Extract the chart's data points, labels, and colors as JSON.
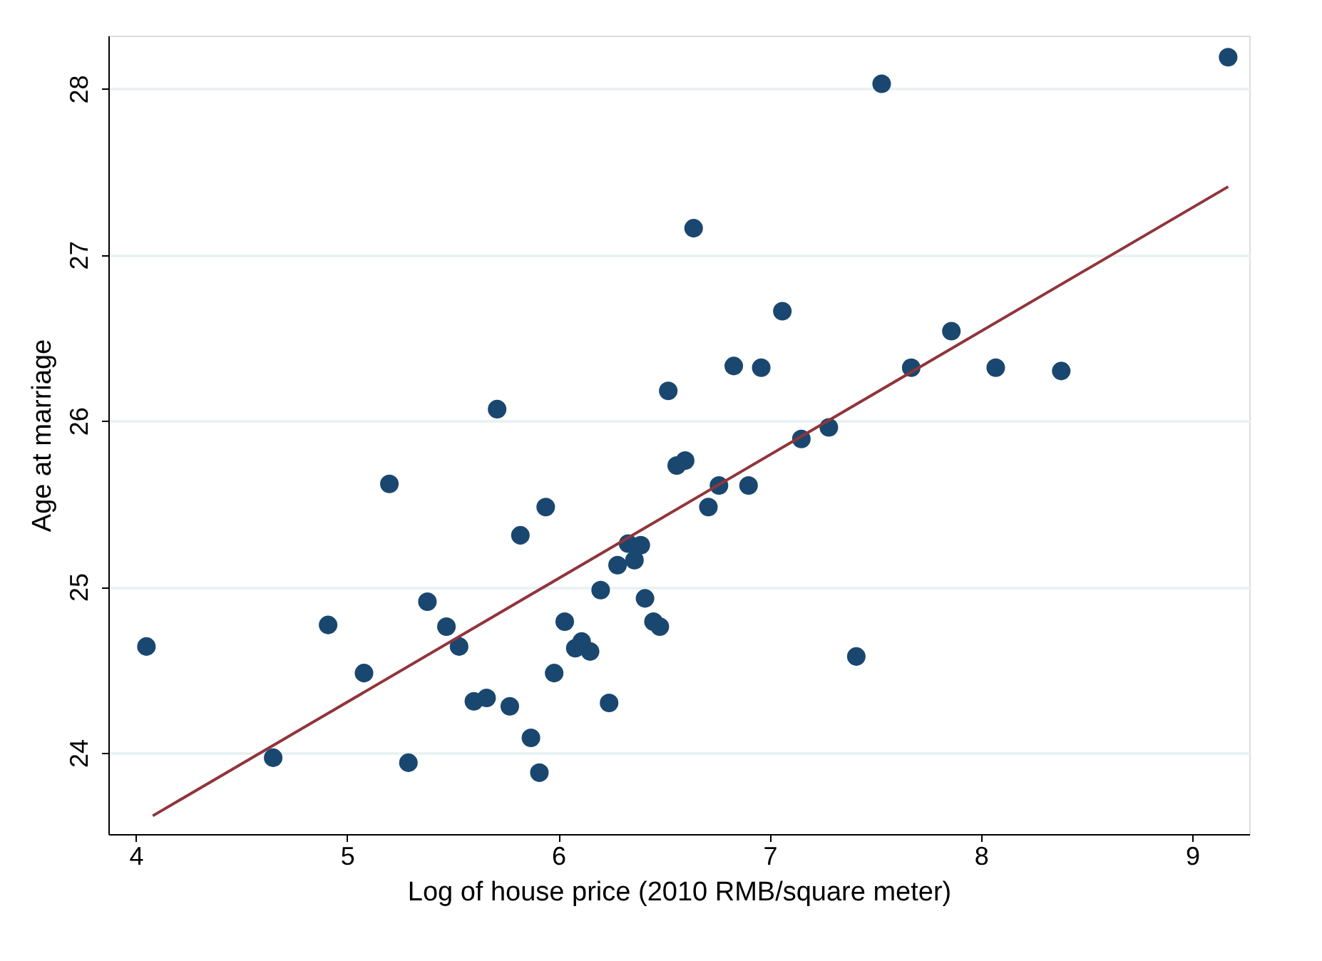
{
  "chart_data": {
    "type": "scatter",
    "xlabel": "Log of house price (2010 RMB/square meter)",
    "ylabel": "Age at marriage",
    "xlim": [
      3.87,
      9.27
    ],
    "ylim": [
      23.51,
      28.32
    ],
    "xticks": [
      4,
      5,
      6,
      7,
      8,
      9
    ],
    "yticks": [
      24,
      25,
      26,
      27,
      28
    ],
    "grid": "y",
    "series": [
      {
        "color": "#1a476f",
        "marker": "circle",
        "x": [
          4.05,
          4.65,
          4.91,
          5.08,
          5.2,
          5.29,
          5.38,
          5.47,
          5.53,
          5.6,
          5.66,
          5.71,
          5.77,
          5.82,
          5.87,
          5.91,
          5.94,
          5.98,
          6.03,
          6.08,
          6.11,
          6.15,
          6.2,
          6.24,
          6.28,
          6.33,
          6.36,
          6.39,
          6.41,
          6.45,
          6.48,
          6.52,
          6.56,
          6.6,
          6.64,
          6.71,
          6.76,
          6.83,
          6.9,
          6.96,
          7.06,
          7.15,
          7.28,
          7.41,
          7.53,
          7.67,
          7.86,
          8.07,
          8.38,
          9.17
        ],
        "values": [
          24.64,
          23.97,
          24.77,
          24.48,
          25.62,
          23.94,
          24.91,
          24.76,
          24.64,
          24.31,
          24.33,
          26.07,
          24.28,
          25.31,
          24.09,
          23.88,
          25.48,
          24.48,
          24.79,
          24.63,
          24.67,
          24.61,
          24.98,
          24.3,
          25.13,
          25.26,
          25.16,
          25.25,
          24.93,
          24.79,
          24.76,
          26.18,
          25.73,
          25.76,
          27.16,
          25.48,
          25.61,
          26.33,
          25.61,
          26.32,
          26.66,
          25.89,
          25.96,
          24.58,
          28.03,
          26.32,
          26.54,
          26.32,
          26.3,
          28.19
        ]
      },
      {
        "type": "line",
        "color": "#90353b",
        "marker": "none",
        "line_style": "solid",
        "x": [
          4.08,
          9.17
        ],
        "values": [
          23.62,
          27.41
        ]
      }
    ]
  }
}
